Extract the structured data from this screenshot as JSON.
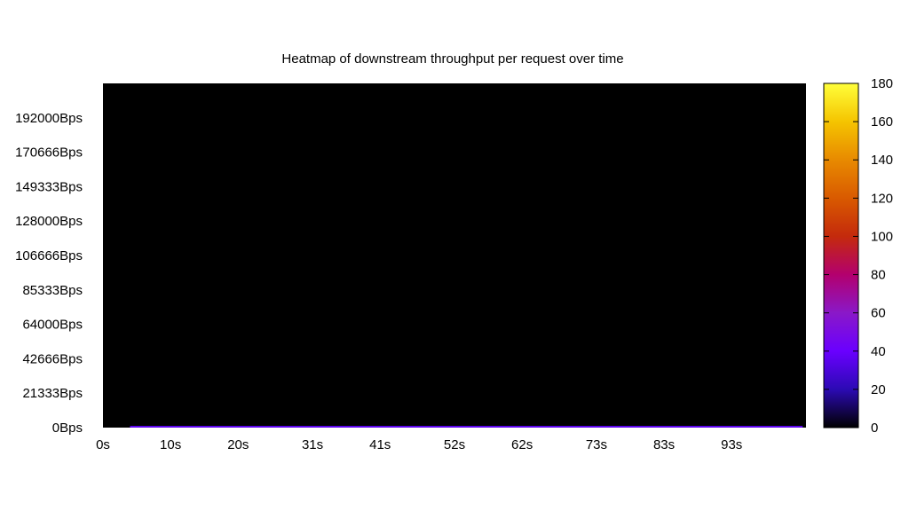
{
  "chart_data": {
    "type": "heatmap",
    "title": "Heatmap of downstream throughput per request over time",
    "xlabel": "",
    "ylabel": "",
    "x_tick_labels": [
      "0s",
      "10s",
      "20s",
      "31s",
      "41s",
      "52s",
      "62s",
      "73s",
      "83s",
      "93s"
    ],
    "x_tick_values": [
      0,
      10,
      20,
      31,
      41,
      52,
      62,
      73,
      83,
      93
    ],
    "xlim": [
      0,
      104
    ],
    "y_tick_labels": [
      "0Bps",
      "21333Bps",
      "42666Bps",
      "64000Bps",
      "85333Bps",
      "106666Bps",
      "128000Bps",
      "149333Bps",
      "170666Bps",
      "192000Bps"
    ],
    "y_tick_values": [
      0,
      21333,
      42666,
      64000,
      85333,
      106666,
      128000,
      149333,
      170666,
      192000
    ],
    "ylim": [
      0,
      213333
    ],
    "colorbar": {
      "min": 0,
      "max": 180,
      "tick_labels": [
        "0",
        "20",
        "40",
        "60",
        "80",
        "100",
        "120",
        "140",
        "160",
        "180"
      ],
      "tick_values": [
        0,
        20,
        40,
        60,
        80,
        100,
        120,
        140,
        160,
        180
      ],
      "palette": [
        "#000000",
        "#2c0ab4",
        "#6a00ff",
        "#8a18c8",
        "#b3006e",
        "#c42a0c",
        "#d95a00",
        "#e88a00",
        "#f5c400",
        "#ffff3a"
      ]
    },
    "background_color": "#000000",
    "cells": [
      {
        "x_start": 4,
        "x_end": 103.5,
        "y_start": 0,
        "y_end": 600,
        "value": 35
      }
    ],
    "grid": false,
    "legend": "colorbar-right"
  }
}
